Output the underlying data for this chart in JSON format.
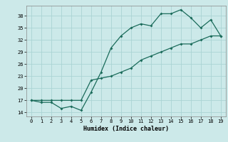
{
  "xlabel": "Humidex (Indice chaleur)",
  "bg_color": "#cce9e9",
  "grid_color": "#aad4d4",
  "line_color": "#1a6b5a",
  "xlim": [
    -0.5,
    19.5
  ],
  "ylim": [
    13.0,
    40.5
  ],
  "xticks": [
    0,
    1,
    2,
    3,
    4,
    5,
    6,
    7,
    8,
    9,
    10,
    11,
    12,
    13,
    14,
    15,
    16,
    17,
    18,
    19
  ],
  "yticks": [
    14,
    17,
    20,
    23,
    26,
    29,
    32,
    35,
    38
  ],
  "upper_x": [
    0,
    1,
    2,
    3,
    4,
    5,
    6,
    7,
    8,
    9,
    10,
    11,
    12,
    13,
    14,
    15,
    16,
    17,
    18,
    19
  ],
  "upper_y": [
    17.0,
    16.5,
    16.5,
    15.0,
    15.5,
    14.5,
    19.0,
    24.0,
    30.0,
    33.0,
    35.0,
    36.0,
    35.5,
    38.5,
    38.5,
    39.5,
    37.5,
    35.0,
    37.0,
    33.0
  ],
  "lower_x": [
    0,
    1,
    2,
    3,
    4,
    5,
    6,
    7,
    8,
    9,
    10,
    11,
    12,
    13,
    14,
    15,
    16,
    17,
    18,
    19
  ],
  "lower_y": [
    17.0,
    17.0,
    17.0,
    17.0,
    17.0,
    17.0,
    22.0,
    22.5,
    23.0,
    24.0,
    25.0,
    27.0,
    28.0,
    29.0,
    30.0,
    31.0,
    31.0,
    32.0,
    33.0,
    33.0
  ]
}
